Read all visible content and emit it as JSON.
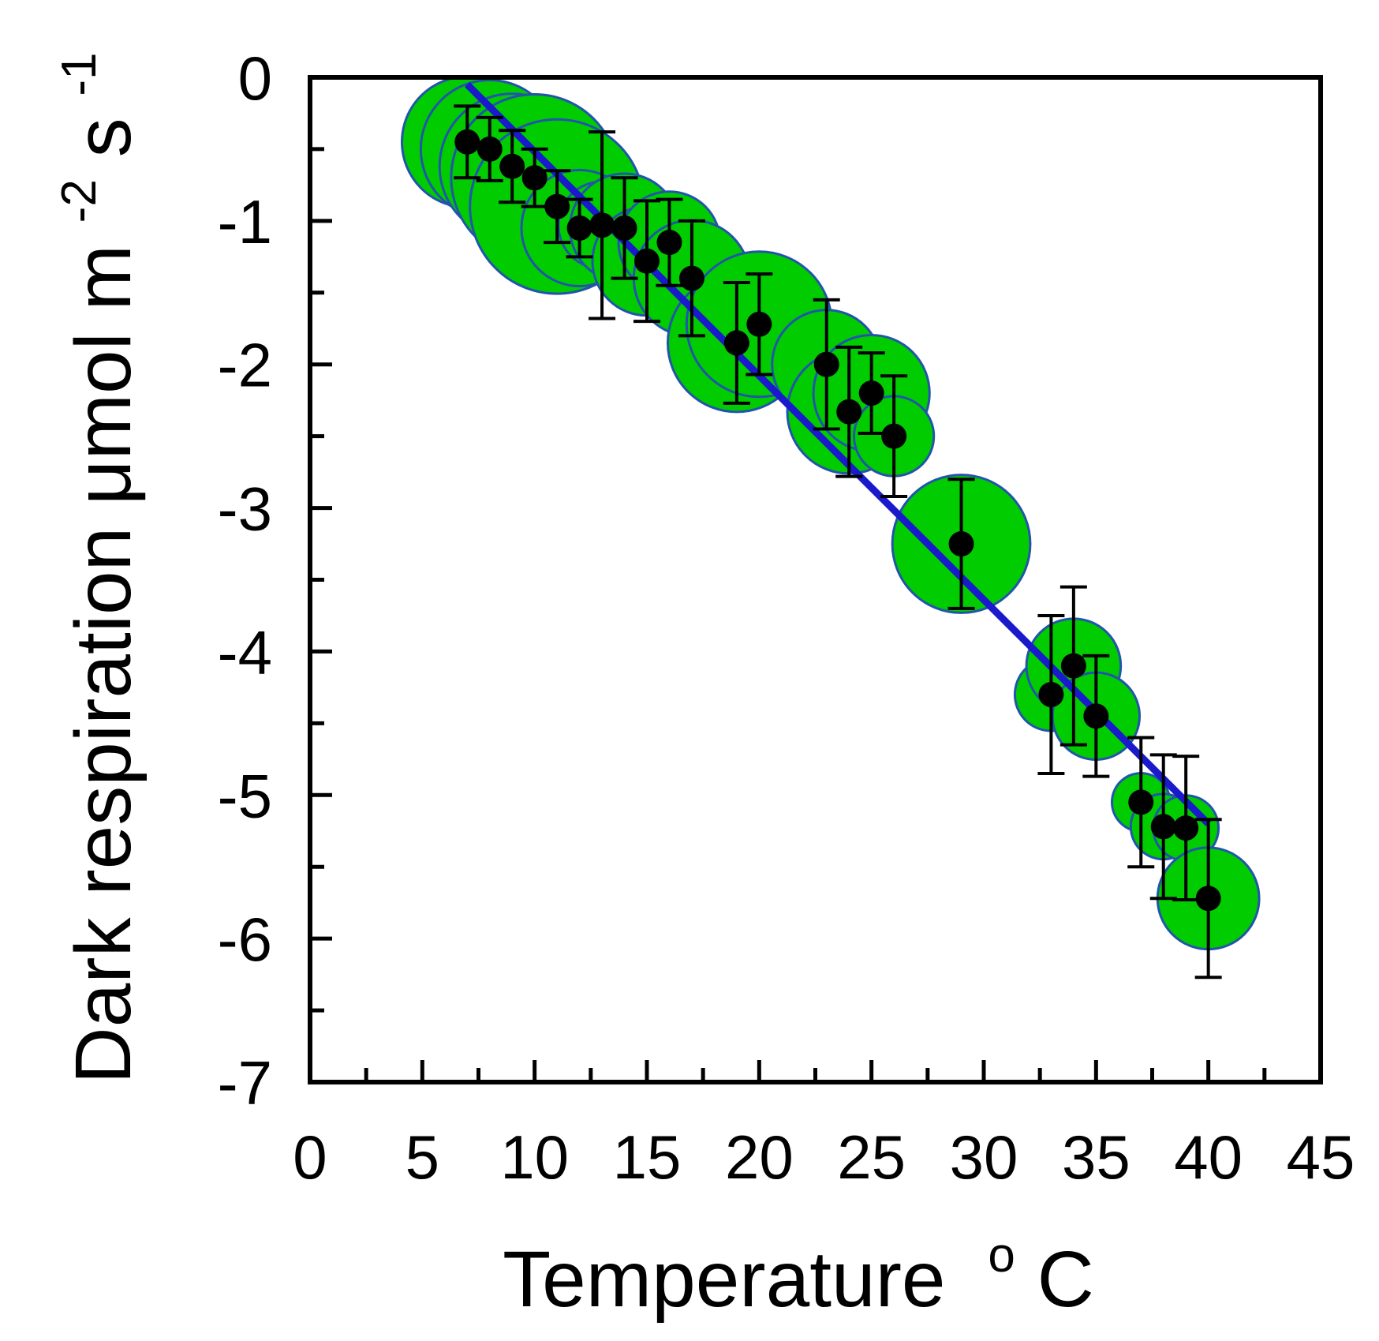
{
  "chart_data": {
    "type": "scatter",
    "title": "",
    "xlabel": "Temperature",
    "xlabel_superscript": "o",
    "xlabel_unit": "C",
    "ylabel": "Dark respiration μmol m",
    "ylabel_sup1": "-2",
    "ylabel_mid": " s",
    "ylabel_sup2": "-1",
    "xlim": [
      0,
      45
    ],
    "ylim": [
      -7,
      0
    ],
    "xticks": [
      0,
      5,
      10,
      15,
      20,
      25,
      30,
      35,
      40,
      45
    ],
    "xtick_labels": [
      "0",
      "5",
      "10",
      "15",
      "20",
      "25",
      "30",
      "35",
      "40",
      "45"
    ],
    "yticks": [
      0,
      -1,
      -2,
      -3,
      -4,
      -5,
      -6,
      -7
    ],
    "ytick_labels": [
      "0",
      "-1",
      "-2",
      "-3",
      "-4",
      "-5",
      "-6",
      "-7"
    ],
    "grid": false,
    "bubble_color": "#00cc00",
    "bubble_edge_color": "#2255aa",
    "point_color": "#000000",
    "fit_line_color": "#1a1acc",
    "fit_line": {
      "x": [
        7,
        40
      ],
      "y": [
        -0.05,
        -5.2
      ]
    },
    "points": [
      {
        "x": 7.0,
        "y": -0.45,
        "err": 0.25,
        "size": 0.9
      },
      {
        "x": 8.0,
        "y": -0.5,
        "err": 0.22,
        "size": 0.95
      },
      {
        "x": 9.0,
        "y": -0.62,
        "err": 0.25,
        "size": 1.0
      },
      {
        "x": 10.0,
        "y": -0.7,
        "err": 0.2,
        "size": 1.15
      },
      {
        "x": 11.0,
        "y": -0.9,
        "err": 0.25,
        "size": 1.2
      },
      {
        "x": 12.0,
        "y": -1.05,
        "err": 0.2,
        "size": 0.8
      },
      {
        "x": 13.0,
        "y": -1.03,
        "err": 0.65,
        "size": 0.6
      },
      {
        "x": 14.0,
        "y": -1.05,
        "err": 0.35,
        "size": 0.75
      },
      {
        "x": 15.0,
        "y": -1.28,
        "err": 0.42,
        "size": 0.75
      },
      {
        "x": 16.0,
        "y": -1.15,
        "err": 0.3,
        "size": 0.7
      },
      {
        "x": 17.0,
        "y": -1.4,
        "err": 0.4,
        "size": 0.8
      },
      {
        "x": 19.0,
        "y": -1.85,
        "err": 0.42,
        "size": 0.95
      },
      {
        "x": 20.0,
        "y": -1.72,
        "err": 0.35,
        "size": 1.0
      },
      {
        "x": 23.0,
        "y": -2.0,
        "err": 0.45,
        "size": 0.75
      },
      {
        "x": 24.0,
        "y": -2.33,
        "err": 0.45,
        "size": 0.85
      },
      {
        "x": 25.0,
        "y": -2.2,
        "err": 0.28,
        "size": 0.8
      },
      {
        "x": 26.0,
        "y": -2.5,
        "err": 0.42,
        "size": 0.55
      },
      {
        "x": 29.0,
        "y": -3.25,
        "err": 0.45,
        "size": 0.95
      },
      {
        "x": 33.0,
        "y": -4.3,
        "err": 0.55,
        "size": 0.5
      },
      {
        "x": 34.0,
        "y": -4.1,
        "err": 0.55,
        "size": 0.65
      },
      {
        "x": 35.0,
        "y": -4.45,
        "err": 0.42,
        "size": 0.6
      },
      {
        "x": 37.0,
        "y": -5.05,
        "err": 0.45,
        "size": 0.4
      },
      {
        "x": 38.0,
        "y": -5.22,
        "err": 0.5,
        "size": 0.45
      },
      {
        "x": 39.0,
        "y": -5.23,
        "err": 0.5,
        "size": 0.45
      },
      {
        "x": 40.0,
        "y": -5.72,
        "err": 0.55,
        "size": 0.7
      }
    ]
  }
}
